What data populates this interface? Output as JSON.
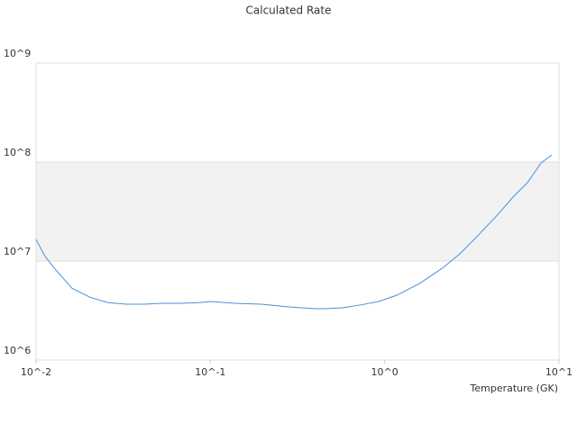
{
  "chart_data": {
    "type": "line",
    "title": "Calculated Rate",
    "x_label": "Temperature (GK)",
    "x": [
      0.01,
      0.01127,
      0.013,
      0.0161,
      0.0204,
      0.0259,
      0.0329,
      0.0418,
      0.053,
      0.0673,
      0.0853,
      0.1,
      0.137,
      0.196,
      0.281,
      0.401,
      0.452,
      0.574,
      0.728,
      0.924,
      1.17,
      1.58,
      2.13,
      2.7,
      3.42,
      4.34,
      5.5,
      6.6,
      7.9,
      9.1
    ],
    "series": [
      {
        "name": "Calculated Rate",
        "color": "#4a90d9",
        "values": [
          16500000,
          11100000,
          8100000,
          5300000,
          4300000,
          3800000,
          3660000,
          3660000,
          3740000,
          3740000,
          3800000,
          3900000,
          3740000,
          3660000,
          3440000,
          3300000,
          3300000,
          3370000,
          3600000,
          3900000,
          4500000,
          5900000,
          8400000,
          11800000,
          18000000,
          28000000,
          45000000,
          62000000,
          98000000,
          118000000
        ]
      }
    ],
    "xlog": true,
    "ylog": true,
    "xlim": [
      0.01,
      10
    ],
    "ylim": [
      1000000,
      1000000000
    ],
    "xticks": [
      {
        "value": 0.01,
        "label": "10^-2"
      },
      {
        "value": 0.1,
        "label": "10^-1"
      },
      {
        "value": 1,
        "label": "10^0"
      },
      {
        "value": 10,
        "label": "10^1"
      }
    ],
    "yticks": [
      {
        "value": 1000000,
        "label": "10^6"
      },
      {
        "value": 10000000,
        "label": "10^7"
      },
      {
        "value": 100000000,
        "label": "10^8"
      },
      {
        "value": 1000000000,
        "label": "10^9"
      }
    ],
    "grid": true,
    "band_color": "#f2f2f2"
  }
}
